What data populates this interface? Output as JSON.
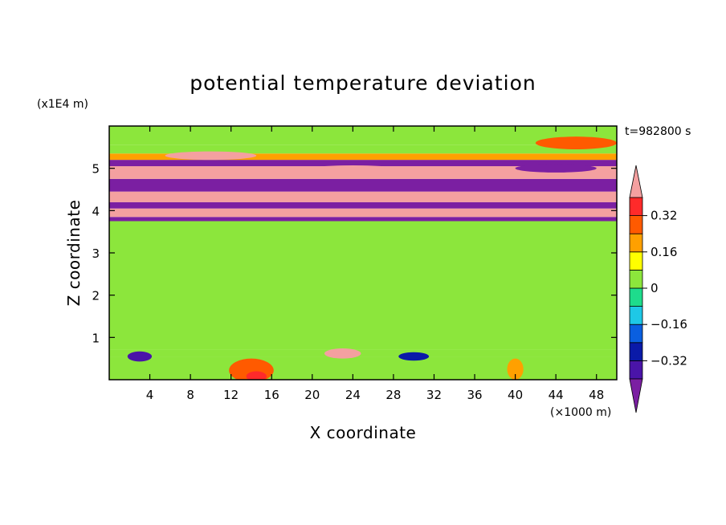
{
  "chart_data": {
    "type": "heatmap",
    "title": "potential temperature deviation",
    "xlabel": "X coordinate",
    "ylabel": "Z coordinate",
    "x_unit": "(×1000 m)",
    "y_unit": "(x1E4 m)",
    "time_label": "t=982800 s",
    "x_ticks": [
      4,
      8,
      12,
      16,
      20,
      24,
      28,
      32,
      36,
      40,
      44,
      48
    ],
    "y_ticks": [
      1,
      2,
      3,
      4,
      5
    ],
    "xlim": [
      0,
      50
    ],
    "ylim": [
      0,
      6
    ],
    "colorbar": {
      "levels": [
        -0.4,
        -0.32,
        -0.24,
        -0.16,
        -0.08,
        0,
        0.08,
        0.16,
        0.24,
        0.32,
        0.4
      ],
      "colors": [
        "#7b1fa2",
        "#4a14a8",
        "#0a1aa8",
        "#0a5fe0",
        "#1ec8e6",
        "#1edc8c",
        "#8ce63c",
        "#ffff00",
        "#ffa000",
        "#ff5a00",
        "#ff2a2a",
        "#f4a0a0"
      ],
      "labels": [
        {
          "value": 0.32,
          "text": "0.32"
        },
        {
          "value": 0.16,
          "text": "0.16"
        },
        {
          "value": 0,
          "text": "0"
        },
        {
          "value": -0.16,
          "text": "−0.16"
        },
        {
          "value": -0.32,
          "text": "−0.32"
        }
      ],
      "extend": "both"
    },
    "bands": [
      {
        "z0": 0.0,
        "z1": 0.55,
        "value": 0.02
      },
      {
        "z0": 0.55,
        "z1": 0.72,
        "value": 0.03
      },
      {
        "z0": 0.72,
        "z1": 3.75,
        "value": 0.05
      },
      {
        "z0": 3.75,
        "z1": 3.85,
        "value": -0.45
      },
      {
        "z0": 3.85,
        "z1": 4.05,
        "value": 0.45
      },
      {
        "z0": 4.05,
        "z1": 4.2,
        "value": -0.45
      },
      {
        "z0": 4.2,
        "z1": 4.45,
        "value": 0.45
      },
      {
        "z0": 4.45,
        "z1": 4.75,
        "value": -0.45
      },
      {
        "z0": 4.75,
        "z1": 5.05,
        "value": 0.45
      },
      {
        "z0": 5.05,
        "z1": 5.2,
        "value": -0.45
      },
      {
        "z0": 5.2,
        "z1": 5.35,
        "value": 0.2
      },
      {
        "z0": 5.35,
        "z1": 5.55,
        "value": 0.04
      },
      {
        "z0": 5.55,
        "z1": 6.0,
        "value": 0.05
      }
    ],
    "blobs": [
      {
        "x": 14,
        "z": 0.22,
        "rx": 2.2,
        "rz": 0.28,
        "value": 0.3
      },
      {
        "x": 14.5,
        "z": 0.08,
        "rx": 1.0,
        "rz": 0.12,
        "value": 0.38
      },
      {
        "x": 23,
        "z": 0.62,
        "rx": 1.8,
        "rz": 0.12,
        "value": 0.45
      },
      {
        "x": 40,
        "z": 0.25,
        "rx": 0.8,
        "rz": 0.25,
        "value": 0.2
      },
      {
        "x": 3,
        "z": 0.55,
        "rx": 1.2,
        "rz": 0.12,
        "value": -0.4
      },
      {
        "x": 30,
        "z": 0.55,
        "rx": 1.5,
        "rz": 0.1,
        "value": -0.3
      },
      {
        "x": 46,
        "z": 5.6,
        "rx": 4.0,
        "rz": 0.15,
        "value": 0.3
      },
      {
        "x": 10,
        "z": 5.3,
        "rx": 4.5,
        "rz": 0.1,
        "value": 0.45
      },
      {
        "x": 44,
        "z": 5.0,
        "rx": 4.0,
        "rz": 0.1,
        "value": -0.45
      },
      {
        "x": 24,
        "z": 4.95,
        "rx": 5.0,
        "rz": 0.12,
        "value": 0.45
      }
    ]
  }
}
